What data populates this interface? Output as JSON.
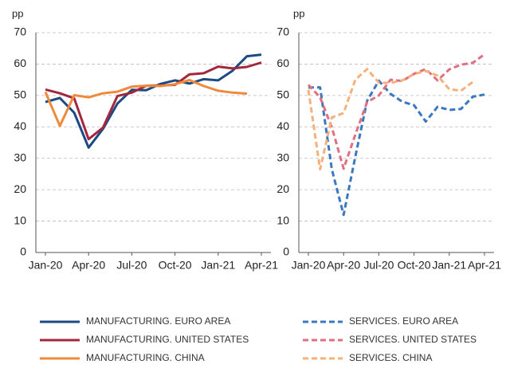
{
  "chart_data": [
    {
      "type": "line",
      "ylabel": "pp",
      "categories": [
        "Jan-20",
        null,
        null,
        "Apr-20",
        null,
        null,
        "Jul-20",
        null,
        null,
        "Oct-20",
        null,
        null,
        "Jan-21",
        null,
        null,
        "Apr-21"
      ],
      "ylim": [
        0,
        70
      ],
      "yticks": [
        0,
        10,
        20,
        30,
        40,
        50,
        60,
        70
      ],
      "grid": true,
      "series": [
        {
          "name": "MANUFACTURING. EURO AREA",
          "color": "#1b4b82",
          "dashed": false,
          "values": [
            47.9,
            49.2,
            44.5,
            33.4,
            39.4,
            47.4,
            51.8,
            51.7,
            53.7,
            54.8,
            53.8,
            55.2,
            54.8,
            57.9,
            62.5,
            63.0
          ]
        },
        {
          "name": "MANUFACTURING. UNITED STATES",
          "color": "#a3283f",
          "dashed": false,
          "values": [
            51.9,
            50.7,
            49.1,
            36.1,
            39.8,
            49.8,
            50.9,
            53.1,
            53.2,
            53.4,
            56.7,
            57.1,
            59.2,
            58.6,
            59.1,
            60.5
          ]
        },
        {
          "name": "MANUFACTURING. CHINA",
          "color": "#ef8a3a",
          "dashed": false,
          "values": [
            51.1,
            40.3,
            50.1,
            49.4,
            50.7,
            51.2,
            52.8,
            53.1,
            53.0,
            53.6,
            54.9,
            53.0,
            51.5,
            50.9,
            50.6,
            null
          ]
        }
      ]
    },
    {
      "type": "line",
      "ylabel": "pp",
      "categories": [
        "Jan-20",
        null,
        null,
        "Apr-20",
        null,
        null,
        "Jul-20",
        null,
        null,
        "Oct-20",
        null,
        null,
        "Jan-21",
        null,
        null,
        "Apr-21"
      ],
      "ylim": [
        0,
        70
      ],
      "yticks": [
        0,
        10,
        20,
        30,
        40,
        50,
        60,
        70
      ],
      "grid": true,
      "series": [
        {
          "name": "SERVICES. EURO AREA",
          "color": "#3a78c0",
          "dashed": true,
          "values": [
            52.5,
            52.6,
            26.4,
            12.0,
            30.5,
            48.3,
            54.7,
            50.5,
            48.0,
            46.9,
            41.7,
            46.4,
            45.4,
            45.7,
            49.6,
            50.3
          ]
        },
        {
          "name": "SERVICES. UNITED STATES",
          "color": "#e0707f",
          "dashed": true,
          "values": [
            53.4,
            49.4,
            39.8,
            26.7,
            37.5,
            47.9,
            50.0,
            55.0,
            54.6,
            56.9,
            58.4,
            54.8,
            58.3,
            59.8,
            60.4,
            63.1
          ]
        },
        {
          "name": "SERVICES. CHINA",
          "color": "#f7b07a",
          "dashed": true,
          "values": [
            51.8,
            26.5,
            43.0,
            44.4,
            55.0,
            58.4,
            54.1,
            54.0,
            54.8,
            56.8,
            57.8,
            56.3,
            52.0,
            51.5,
            54.3,
            null
          ]
        }
      ]
    }
  ]
}
